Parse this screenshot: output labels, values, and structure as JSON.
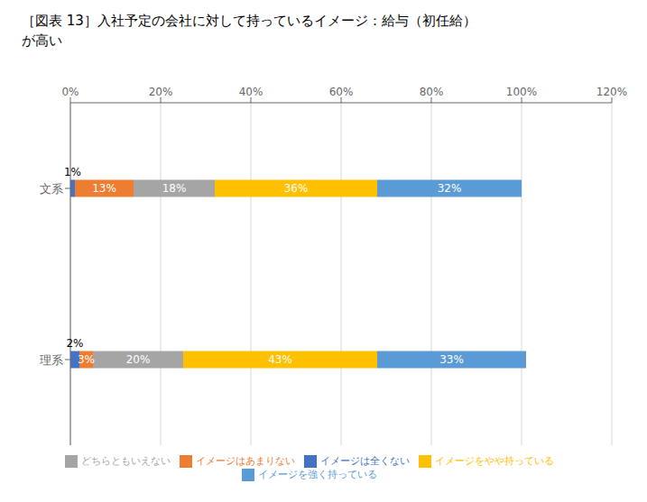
{
  "chart_data": {
    "type": "bar",
    "orientation": "horizontal",
    "stacked": true,
    "title": "［図表 13］入社予定の会社に対して持っているイメージ：給与（初任給）\nが高い",
    "categories": [
      "文系",
      "理系"
    ],
    "series": [
      {
        "name": "イメージは全くない",
        "color": "#4472c4",
        "values": [
          1,
          2
        ],
        "value_labels": [
          "1%",
          "2%"
        ]
      },
      {
        "name": "イメージはあまりない",
        "color": "#ed7d31",
        "values": [
          13,
          3
        ],
        "value_labels": [
          "13%",
          "3%"
        ]
      },
      {
        "name": "どちらともいえない",
        "color": "#a5a5a5",
        "values": [
          18,
          20
        ],
        "value_labels": [
          "18%",
          "20%"
        ]
      },
      {
        "name": "イメージをやや持っている",
        "color": "#ffc000",
        "values": [
          36,
          43
        ],
        "value_labels": [
          "36%",
          "43%"
        ]
      },
      {
        "name": "イメージを強く持っている",
        "color": "#5b9bd5",
        "values": [
          32,
          33
        ],
        "value_labels": [
          "32%",
          "33%"
        ]
      }
    ],
    "xlim": [
      0,
      120
    ],
    "xticks": [
      {
        "value": 0,
        "label": "0%"
      },
      {
        "value": 20,
        "label": "20%"
      },
      {
        "value": 40,
        "label": "40%"
      },
      {
        "value": 60,
        "label": "60%"
      },
      {
        "value": 80,
        "label": "80%"
      },
      {
        "value": 100,
        "label": "100%"
      },
      {
        "value": 120,
        "label": "120%"
      }
    ],
    "grid": true,
    "legend": "bottom",
    "data_labels": true
  }
}
